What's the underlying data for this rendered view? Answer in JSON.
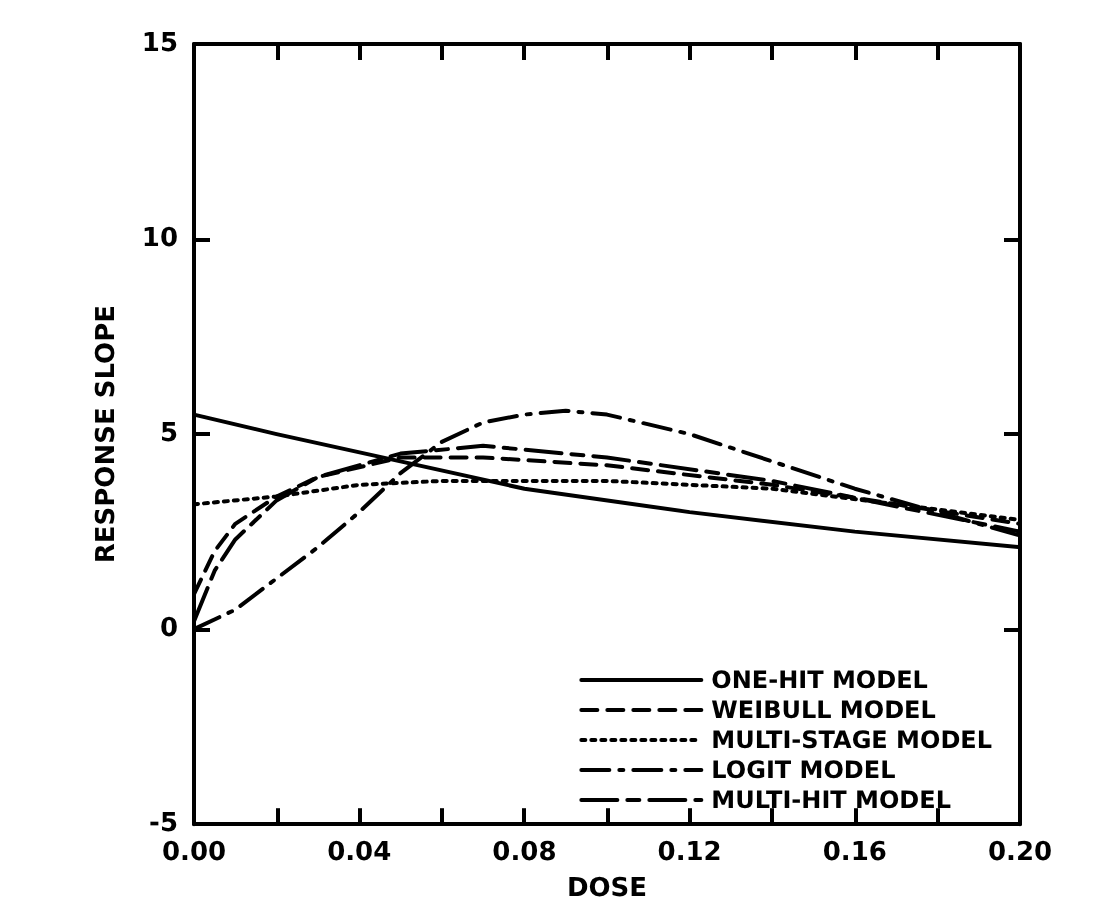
{
  "chart_data": {
    "type": "line",
    "xlabel": "DOSE",
    "ylabel": "RESPONSE SLOPE",
    "xlim": [
      0,
      0.2
    ],
    "ylim": [
      -5,
      15
    ],
    "xticks": [
      "0.00",
      {
        "value": 0.02,
        "label": null
      },
      {
        "value": 0.04,
        "label": "0.04"
      },
      {
        "value": 0.06,
        "label": null
      },
      {
        "value": 0.08,
        "label": "0.08"
      },
      {
        "value": 0.1,
        "label": null
      },
      {
        "value": 0.12,
        "label": "0.12"
      },
      {
        "value": 0.14,
        "label": null
      },
      {
        "value": 0.16,
        "label": "0.16"
      },
      {
        "value": 0.18,
        "label": null
      },
      {
        "value": 0.2,
        "label": "0.20"
      }
    ],
    "yticks": [
      -5,
      0,
      5,
      10,
      15
    ],
    "grid": false,
    "legend": "bottom right",
    "marker": "none",
    "series": [
      {
        "name": "ONE-HIT MODEL",
        "color": "#000000",
        "line_style": "solid",
        "x": [
          0,
          0.02,
          0.05,
          0.08,
          0.12,
          0.16,
          0.2
        ],
        "values": [
          5.5,
          5.0,
          4.3,
          3.6,
          3.0,
          2.5,
          2.1
        ]
      },
      {
        "name": "WEIBULL MODEL",
        "color": "#000000",
        "line_style": "dashed",
        "x": [
          0,
          0.005,
          0.01,
          0.02,
          0.03,
          0.05,
          0.07,
          0.1,
          0.14,
          0.2
        ],
        "values": [
          0.9,
          2.0,
          2.7,
          3.4,
          3.9,
          4.4,
          4.4,
          4.2,
          3.7,
          2.7
        ]
      },
      {
        "name": "MULTI-STAGE MODEL",
        "color": "#000000",
        "line_style": "dotted",
        "x": [
          0,
          0.02,
          0.04,
          0.06,
          0.1,
          0.14,
          0.2
        ],
        "values": [
          3.2,
          3.4,
          3.7,
          3.8,
          3.8,
          3.6,
          2.8
        ]
      },
      {
        "name": "LOGIT MODEL",
        "color": "#000000",
        "line_style": "dashdot",
        "x": [
          0,
          0.01,
          0.02,
          0.03,
          0.04,
          0.05,
          0.06,
          0.07,
          0.08,
          0.09,
          0.1,
          0.12,
          0.14,
          0.16,
          0.18,
          0.2
        ],
        "values": [
          0,
          0.5,
          1.3,
          2.1,
          3.0,
          4.0,
          4.8,
          5.3,
          5.5,
          5.6,
          5.5,
          5.0,
          4.3,
          3.6,
          3.0,
          2.4
        ]
      },
      {
        "name": "MULTI-HIT MODEL",
        "color": "#000000",
        "line_style": "longdash",
        "x": [
          0,
          0.005,
          0.01,
          0.02,
          0.03,
          0.05,
          0.07,
          0.1,
          0.14,
          0.2
        ],
        "values": [
          0.2,
          1.5,
          2.3,
          3.3,
          3.9,
          4.5,
          4.7,
          4.4,
          3.8,
          2.5
        ]
      }
    ]
  }
}
